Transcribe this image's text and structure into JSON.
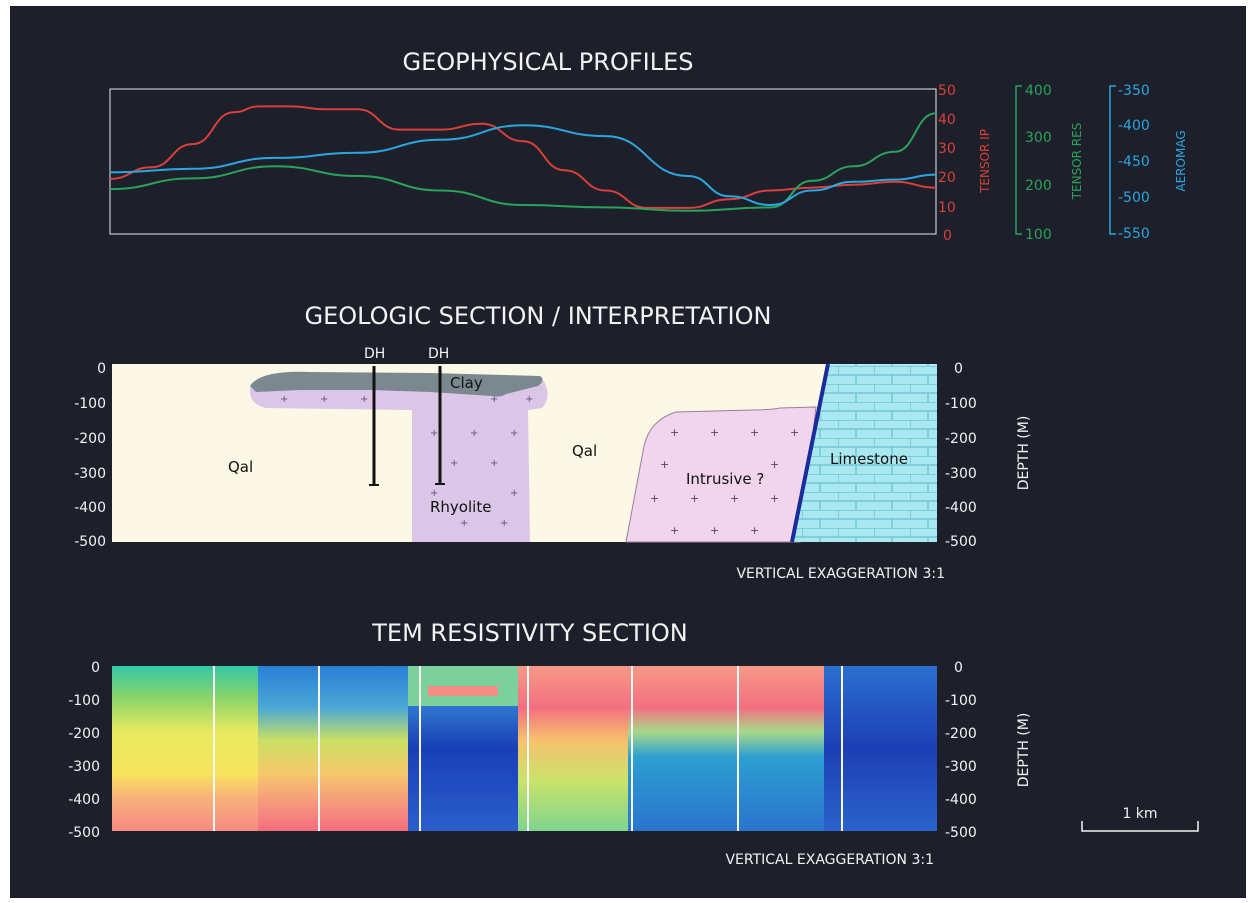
{
  "colors": {
    "background": "#1d1f2b",
    "tensor_ip": "#d9403a",
    "tensor_res": "#2aa35a",
    "aeromag": "#2aa6df",
    "qal": "#fbf8e6",
    "rhyolite": "#dcc6e8",
    "intrusive": "#f1d5ec",
    "clay": "#7c8890",
    "limestone": "#a9e8f0",
    "drillhole": "#111111"
  },
  "profiles": {
    "title": "GEOPHYSICAL PROFILES",
    "axes": {
      "tensor_ip": {
        "label": "TENSOR IP",
        "ticks": [
          "50",
          "40",
          "30",
          "20",
          "10",
          "0"
        ]
      },
      "tensor_res": {
        "label": "TENSOR RES",
        "ticks": [
          "400",
          "300",
          "200",
          "100"
        ]
      },
      "aeromag": {
        "label": "AEROMAG",
        "ticks": [
          "-350",
          "-400",
          "-450",
          "-500",
          "-550"
        ]
      }
    }
  },
  "chart_data": {
    "type": "line",
    "title": "GEOPHYSICAL PROFILES",
    "x_range": [
      0,
      100
    ],
    "series": [
      {
        "name": "TENSOR IP",
        "axis": "TENSOR IP",
        "ylim": [
          0,
          50
        ],
        "x": [
          0,
          5,
          10,
          15,
          18,
          22,
          26,
          30,
          35,
          40,
          45,
          50,
          55,
          60,
          65,
          70,
          75,
          80,
          85,
          90,
          95,
          100
        ],
        "y": [
          19,
          23,
          31,
          42,
          44,
          44,
          43,
          43,
          36,
          36,
          38,
          32,
          22,
          15,
          9,
          9,
          12,
          15,
          16,
          17,
          18,
          16
        ]
      },
      {
        "name": "TENSOR RES",
        "axis": "TENSOR RES",
        "ylim": [
          100,
          400
        ],
        "x": [
          0,
          10,
          20,
          30,
          40,
          50,
          60,
          70,
          80,
          85,
          90,
          95,
          100
        ],
        "y": [
          193,
          215,
          240,
          220,
          190,
          160,
          155,
          148,
          155,
          210,
          240,
          270,
          350
        ]
      },
      {
        "name": "AEROMAG",
        "axis": "AEROMAG",
        "ylim": [
          -550,
          -350
        ],
        "x": [
          0,
          10,
          20,
          30,
          40,
          50,
          60,
          70,
          75,
          80,
          85,
          90,
          95,
          100
        ],
        "y": [
          -465,
          -460,
          -445,
          -438,
          -420,
          -400,
          -415,
          -470,
          -498,
          -510,
          -490,
          -478,
          -475,
          -468
        ]
      }
    ]
  },
  "geologic": {
    "title": "GEOLOGIC  SECTION / INTERPRETATION",
    "left_ticks": [
      "0",
      "-100",
      "-200",
      "-300",
      "-400",
      "-500"
    ],
    "right_ticks": [
      "0",
      "-100",
      "-200",
      "-300",
      "-400",
      "-500"
    ],
    "depth_label": "DEPTH (M)",
    "vertical_exaggeration": "VERTICAL EXAGGERATION 3:1",
    "units": {
      "qal_left": "Qal",
      "qal_right": "Qal",
      "clay": "Clay",
      "rhyolite": "Rhyolite",
      "intrusive": "Intrusive ?",
      "limestone": "Limestone"
    },
    "drillholes": [
      "DH",
      "DH"
    ]
  },
  "tem": {
    "title": "TEM RESISTIVITY SECTION",
    "left_ticks": [
      "0",
      "-100",
      "-200",
      "-300",
      "-400",
      "-500"
    ],
    "right_ticks": [
      "0",
      "-100",
      "-200",
      "-300",
      "-400",
      "-500"
    ],
    "depth_label": "DEPTH (M)",
    "vertical_exaggeration": "VERTICAL EXAGGERATION 3:1",
    "scale_bar": "1 km"
  }
}
